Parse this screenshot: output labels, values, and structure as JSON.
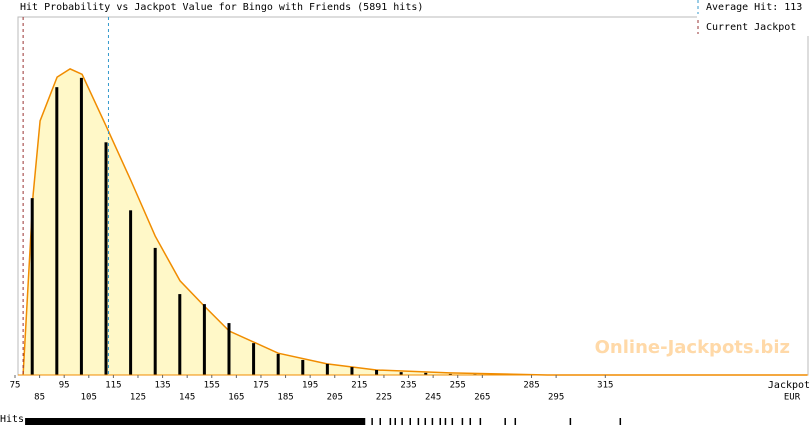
{
  "chart_data": {
    "type": "bar",
    "title": "Hit Probability vs Jackpot Value for Bingo with Friends (5891 hits)",
    "average_label": "Average Hit: 113",
    "average": 113,
    "average_color": "#3399cc",
    "current_label": "Current Jackpot",
    "current_jackpot": 78.3,
    "current_color": "#993333",
    "watermark": "Online-Jackpots.biz",
    "x_label": [
      "Jackpot,",
      "EUR"
    ],
    "rug_label": "Hits",
    "xlim": [
      75,
      397
    ],
    "ylim": [
      0,
      100
    ],
    "xticks": [
      75,
      85,
      95,
      105,
      115,
      125,
      135,
      145,
      155,
      165,
      175,
      185,
      195,
      205,
      215,
      225,
      235,
      245,
      255,
      265,
      285,
      295,
      315
    ],
    "x": [
      82,
      92,
      102,
      112,
      122,
      132,
      142,
      152,
      162,
      172,
      182,
      192,
      202,
      212,
      222,
      232,
      242,
      252,
      262,
      272,
      292,
      322
    ],
    "values": [
      49.4,
      80.4,
      83,
      65,
      46,
      35.5,
      22.6,
      19.8,
      14.5,
      8.9,
      5.9,
      4.2,
      3.1,
      2.2,
      1.4,
      0.8,
      0.6,
      0.3,
      0.2,
      0.1,
      0.1,
      0.1
    ],
    "color": "#000000",
    "curve": {
      "color": "#f08c00",
      "fill": "#fff8c8",
      "x": [
        78.3,
        82.3,
        85.2,
        92.1,
        97.4,
        102.3,
        112,
        122.2,
        132,
        142.1,
        151.9,
        162.1,
        182,
        201.9,
        221.9,
        251.6,
        291.4,
        397
      ],
      "values": [
        0,
        50,
        71,
        83.2,
        85.5,
        84,
        69.6,
        54.2,
        38.8,
        26.3,
        19.3,
        12.3,
        6.1,
        3.1,
        1.4,
        0.6,
        0,
        0
      ]
    },
    "hits_dense_range": [
      79.1,
      217.4
    ],
    "hits": [
      220.2,
      223.5,
      227.6,
      229.6,
      232.4,
      235.7,
      239,
      241.8,
      244.7,
      247.9,
      250,
      252.8,
      256.9,
      260.1,
      264.2,
      274.3,
      278.4,
      300.8,
      321.1
    ]
  }
}
